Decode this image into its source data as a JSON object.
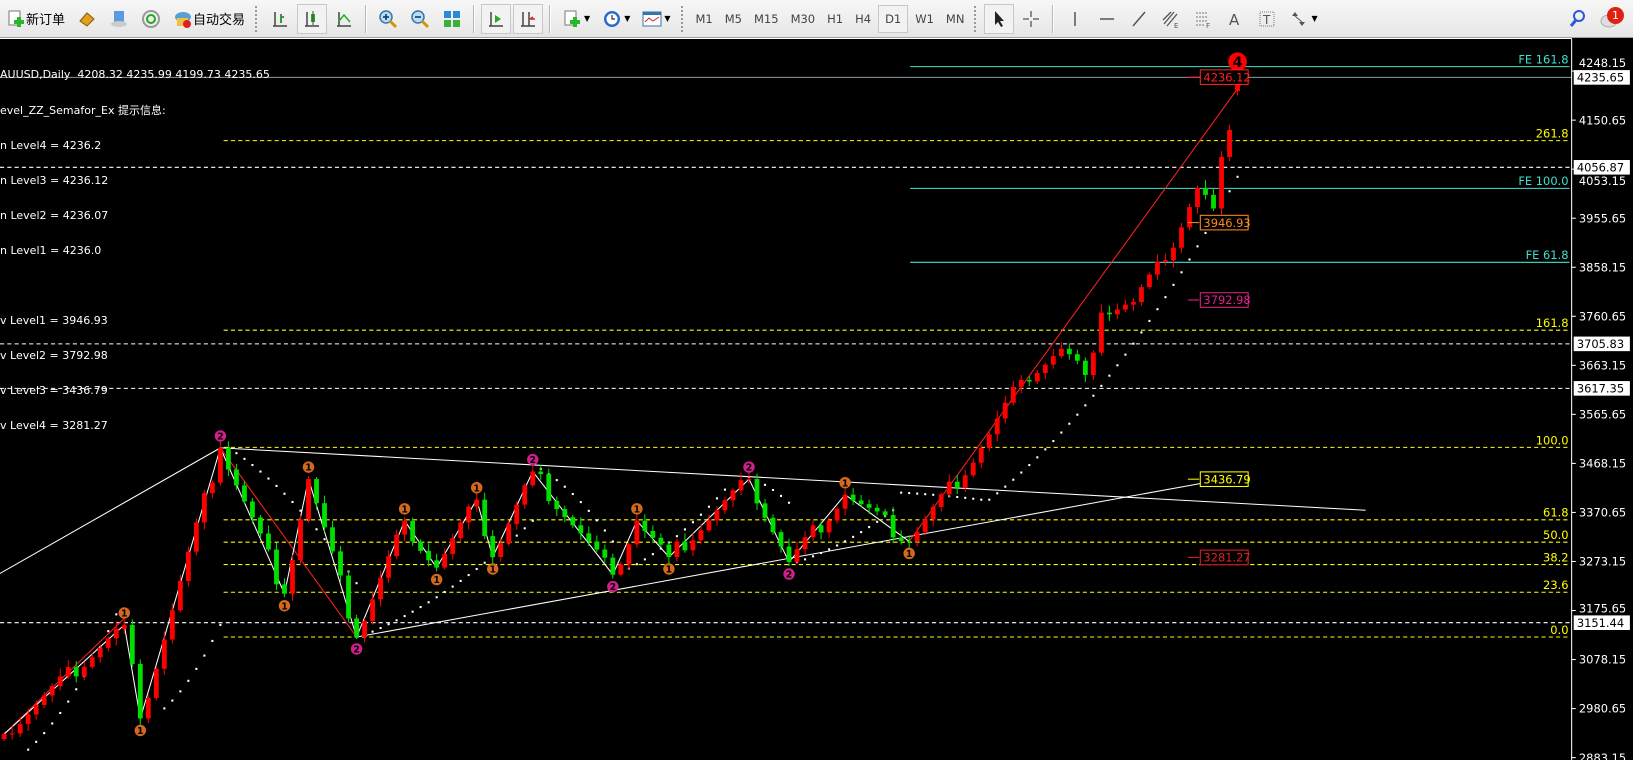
{
  "toolbar": {
    "new_order": "新订单",
    "auto_trading": "自动交易",
    "timeframes": [
      "M1",
      "M5",
      "M15",
      "M30",
      "H1",
      "H4",
      "D1",
      "W1",
      "MN"
    ],
    "active_timeframe": "D1",
    "notification_count": "1",
    "icons": [
      "new-order-icon",
      "market-watch-icon",
      "data-window-icon",
      "signals-icon",
      "auto-trading-icon",
      "bar-chart-icon",
      "candlestick-icon",
      "line-chart-icon",
      "zoom-in-icon",
      "zoom-out-icon",
      "tile-windows-icon",
      "auto-scroll-icon",
      "chart-shift-icon",
      "indicators-icon",
      "periods-icon",
      "templates-icon",
      "cursor-icon",
      "crosshair-icon",
      "vertical-line-icon",
      "horizontal-line-icon",
      "trendline-icon",
      "equidistant-channel-icon",
      "fibonacci-icon",
      "text-icon",
      "text-label-icon",
      "arrows-icon",
      "search-icon",
      "notification-icon"
    ]
  },
  "info": {
    "header": "AUUSD,Daily  4208.32 4235.99 4199.73 4235.65",
    "indicator": "evel_ZZ_Semafor_Ex 提示信息:",
    "up_levels": [
      "n Level4 = 4236.2",
      "n Level3 = 4236.12",
      "n Level2 = 4236.07",
      "n Level1 = 4236.0"
    ],
    "down_levels": [
      "v Level1 = 3946.93",
      "v Level2 = 3792.98",
      "v Level3 = 3436.79",
      "v Level4 = 3281.27"
    ]
  },
  "chart_data": {
    "type": "candlestick",
    "symbol": "XAUUSD",
    "timeframe": "Daily",
    "ohlc_last": {
      "open": 4208.32,
      "high": 4235.99,
      "low": 4199.73,
      "close": 4235.65
    },
    "y_ticks": [
      "4248.15",
      "4150.65",
      "4053.15",
      "3955.65",
      "3858.15",
      "3760.65",
      "3663.15",
      "3565.65",
      "3468.15",
      "3370.65",
      "3273.15",
      "3175.65",
      "3078.15",
      "2980.65",
      "2883.15"
    ],
    "price_boxes": [
      {
        "label": "4235.65",
        "price": 4235.65,
        "line": "solid",
        "color": "#8a9aa8"
      },
      {
        "label": "4056.87",
        "price": 4056.87,
        "line": "dashed",
        "color": "#ffffff"
      },
      {
        "label": "3705.83",
        "price": 3705.83,
        "line": "dashed",
        "color": "#ffffff"
      },
      {
        "label": "3617.35",
        "price": 3617.35,
        "line": "dashed",
        "color": "#ffffff"
      },
      {
        "label": "3151.44",
        "price": 3151.44,
        "line": "dashed",
        "color": "#ffffff"
      }
    ],
    "fib_retracement": {
      "price_0": 3123,
      "price_100": 3500,
      "color": "#ffff00",
      "levels": [
        {
          "ratio": 0.0,
          "label": "0.0"
        },
        {
          "ratio": 0.236,
          "label": "23.6"
        },
        {
          "ratio": 0.382,
          "label": "38.2"
        },
        {
          "ratio": 0.5,
          "label": "50.0"
        },
        {
          "ratio": 0.618,
          "label": "61.8"
        },
        {
          "ratio": 1.0,
          "label": "100.0"
        },
        {
          "ratio": 1.618,
          "label": "161.8"
        },
        {
          "ratio": 2.618,
          "label": "261.8"
        }
      ]
    },
    "fib_expansion": {
      "color": "#40e0d0",
      "levels": [
        {
          "label": "FE 161.8",
          "price": 4257
        },
        {
          "label": "FE 100.0",
          "price": 4015
        },
        {
          "label": "FE 61.8",
          "price": 3868
        }
      ]
    },
    "level_labels": [
      {
        "label": "4236.12",
        "price": 4236.12,
        "color": "#ff2020",
        "boxed": true
      },
      {
        "label": "3946.93",
        "price": 3946.93,
        "color": "#ff8c1a",
        "boxed": true
      },
      {
        "label": "3792.98",
        "price": 3792.98,
        "color": "#e0208a",
        "boxed": true
      },
      {
        "label": "3436.79",
        "price": 3436.79,
        "color": "#ffff00",
        "boxed": true
      },
      {
        "label": "3281.27",
        "price": 3281.27,
        "color": "#e02020",
        "boxed": true
      }
    ],
    "zigzag_pivots": [
      [
        0,
        2930
      ],
      [
        15,
        3147
      ],
      [
        17,
        2961
      ],
      [
        27,
        3499
      ],
      [
        35,
        3209
      ],
      [
        38,
        3437
      ],
      [
        44,
        3123
      ],
      [
        50,
        3354
      ],
      [
        54,
        3261
      ],
      [
        59,
        3396
      ],
      [
        61,
        3282
      ],
      [
        66,
        3452
      ],
      [
        76,
        3247
      ],
      [
        79,
        3354
      ],
      [
        83,
        3282
      ],
      [
        93,
        3437
      ],
      [
        98,
        3272
      ],
      [
        105,
        3406
      ],
      [
        113,
        3313
      ],
      [
        122,
        3499
      ],
      [
        127,
        3634
      ],
      [
        132,
        3696
      ],
      [
        135,
        3644
      ],
      [
        137,
        3768
      ],
      [
        141,
        3789
      ],
      [
        145,
        3872
      ],
      [
        149,
        4016
      ],
      [
        151,
        3975
      ],
      [
        154,
        4235.65
      ]
    ],
    "semafor": [
      {
        "bar": 27,
        "price": 3499,
        "pos": "above",
        "n": "2",
        "color": "#d0208a"
      },
      {
        "bar": 38,
        "price": 3437,
        "pos": "above",
        "n": "1",
        "color": "#d2691e"
      },
      {
        "bar": 35,
        "price": 3209,
        "pos": "below",
        "n": "1",
        "color": "#d2691e"
      },
      {
        "bar": 15,
        "price": 3147,
        "pos": "above",
        "n": "1",
        "color": "#d2691e"
      },
      {
        "bar": 17,
        "price": 2961,
        "pos": "below",
        "n": "1",
        "color": "#d2691e"
      },
      {
        "bar": 44,
        "price": 3123,
        "pos": "below",
        "n": "2",
        "color": "#d0208a"
      },
      {
        "bar": 50,
        "price": 3354,
        "pos": "above",
        "n": "1",
        "color": "#d2691e"
      },
      {
        "bar": 54,
        "price": 3261,
        "pos": "below",
        "n": "1",
        "color": "#d2691e"
      },
      {
        "bar": 59,
        "price": 3396,
        "pos": "above",
        "n": "1",
        "color": "#d2691e"
      },
      {
        "bar": 61,
        "price": 3282,
        "pos": "below",
        "n": "1",
        "color": "#d2691e"
      },
      {
        "bar": 66,
        "price": 3452,
        "pos": "above",
        "n": "2",
        "color": "#d0208a"
      },
      {
        "bar": 76,
        "price": 3247,
        "pos": "below",
        "n": "2",
        "color": "#d0208a"
      },
      {
        "bar": 79,
        "price": 3354,
        "pos": "above",
        "n": "1",
        "color": "#d2691e"
      },
      {
        "bar": 83,
        "price": 3282,
        "pos": "below",
        "n": "1",
        "color": "#d2691e"
      },
      {
        "bar": 93,
        "price": 3437,
        "pos": "above",
        "n": "2",
        "color": "#d0208a"
      },
      {
        "bar": 98,
        "price": 3272,
        "pos": "below",
        "n": "2",
        "color": "#d0208a"
      },
      {
        "bar": 105,
        "price": 3406,
        "pos": "above",
        "n": "1",
        "color": "#d2691e"
      },
      {
        "bar": 113,
        "price": 3313,
        "pos": "below",
        "n": "1",
        "color": "#d2691e"
      },
      {
        "bar": 154,
        "price": 4235.65,
        "pos": "above",
        "n": "4",
        "color": "#ff0000"
      }
    ],
    "sar_segments": [
      [
        3,
        2899,
        14,
        3168
      ],
      [
        20,
        2981,
        27,
        3147
      ],
      [
        28,
        3499,
        44,
        3230
      ],
      [
        45,
        3127,
        66,
        3354
      ],
      [
        67,
        3457,
        76,
        3313
      ],
      [
        77,
        3251,
        90,
        3416
      ],
      [
        93,
        3441,
        98,
        3390
      ],
      [
        99,
        3272,
        111,
        3375
      ],
      [
        112,
        3410,
        122,
        3396
      ],
      [
        123,
        3396,
        154,
        4038
      ]
    ],
    "trendlines": [
      {
        "from": [
          27,
          3499
        ],
        "to": [
          170,
          3375
        ],
        "color": "#ffffff"
      },
      {
        "from": [
          44,
          3123
        ],
        "to": [
          150,
          3430
        ],
        "color": "#ffffff"
      },
      {
        "from": [
          -1,
          3245
        ],
        "to": [
          27,
          3499
        ],
        "color": "#ffffff"
      },
      {
        "from": [
          113,
          3313
        ],
        "to": [
          155,
          4235
        ],
        "color": "#ff2020"
      },
      {
        "from": [
          27,
          3499
        ],
        "to": [
          44,
          3123
        ],
        "color": "#ff2020"
      },
      {
        "from": [
          0,
          2930
        ],
        "to": [
          15,
          3160
        ],
        "color": "#ff2020"
      }
    ],
    "colors": {
      "up": "#ff0000",
      "down": "#00e000",
      "background": "#000000",
      "axis": "#ffffff"
    }
  }
}
